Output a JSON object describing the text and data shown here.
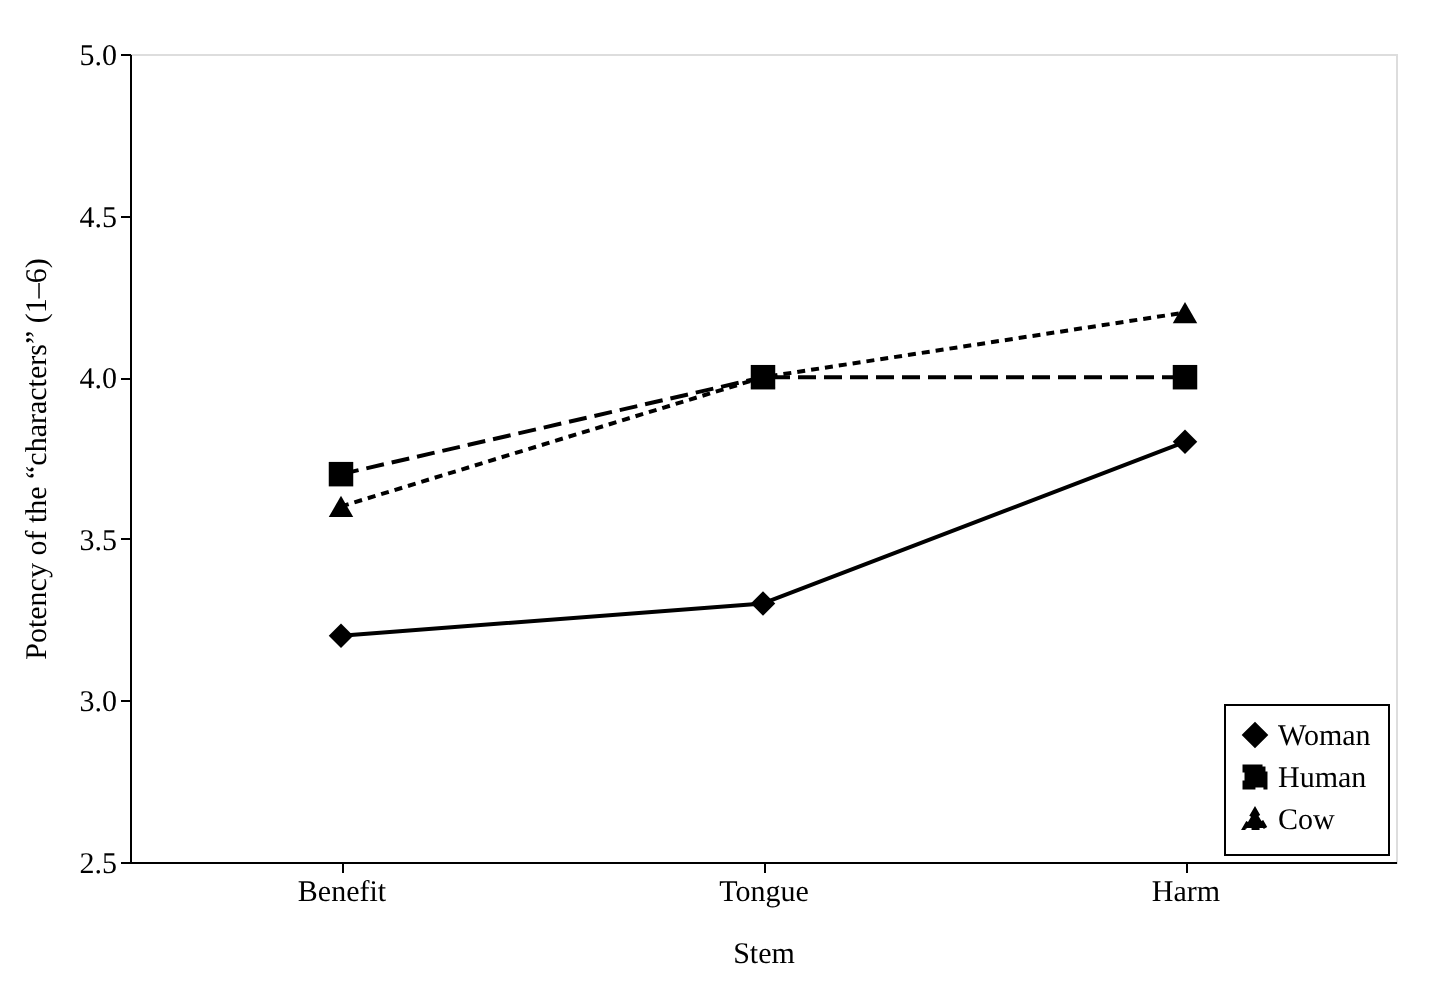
{
  "chart_data": {
    "type": "line",
    "xlabel": "Stem",
    "ylabel": "Potency of the “characters” (1–6)",
    "categories": [
      "Benefit",
      "Tongue",
      "Harm"
    ],
    "series": [
      {
        "name": "Woman",
        "color": "#000000",
        "values": [
          3.2,
          3.3,
          3.8
        ],
        "marker": "diamond",
        "line_style": "solid"
      },
      {
        "name": "Human",
        "color": "#000000",
        "values": [
          3.7,
          4.0,
          4.0
        ],
        "marker": "square",
        "line_style": "dashed"
      },
      {
        "name": "Cow",
        "color": "#000000",
        "values": [
          3.6,
          4.0,
          4.2
        ],
        "marker": "triangle",
        "line_style": "dotted"
      }
    ],
    "ylim": [
      2.5,
      5.0
    ],
    "yticks": [
      2.5,
      {
        "value": 3,
        "label": "3.0"
      },
      3.5,
      {
        "value": 4,
        "label": "4.0"
      },
      4.5,
      {
        "value": 5,
        "label": "5.0"
      }
    ],
    "grid": false,
    "legend": "bottom right"
  }
}
